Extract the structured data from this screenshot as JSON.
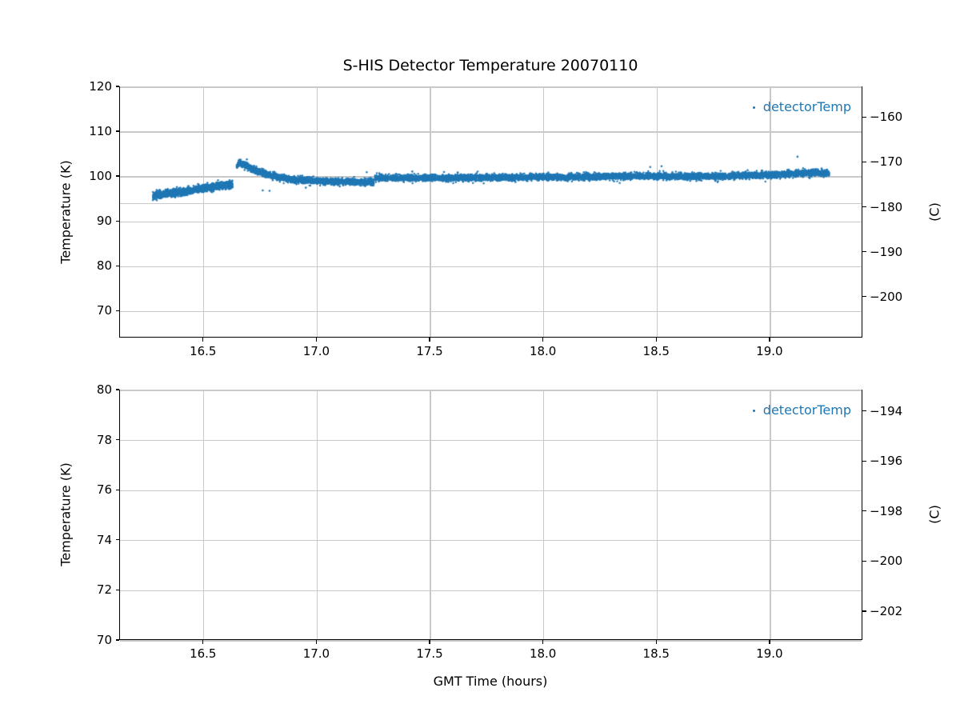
{
  "figure": {
    "title": "S-HIS Detector Temperature 20070110",
    "xlabel": "GMT Time (hours)",
    "accent_color": "#1f77b4",
    "grid_color": "#c9c9c9"
  },
  "chart_data": [
    {
      "type": "scatter",
      "title": "S-HIS Detector Temperature 20070110",
      "ylabel_left": "Temperature (K)",
      "ylabel_right": "(C)",
      "legend_label": "detectorTemp",
      "legend_position": "upper right",
      "marker_color": "#1f77b4",
      "grid": true,
      "xlim": [
        16.13,
        19.41
      ],
      "ylim_K": [
        64,
        120
      ],
      "c_to_k": 273.15,
      "xticks": [
        {
          "v": 16.5,
          "label": "16.5"
        },
        {
          "v": 17.0,
          "label": "17.0"
        },
        {
          "v": 17.5,
          "label": "17.5"
        },
        {
          "v": 18.0,
          "label": "18.0"
        },
        {
          "v": 18.5,
          "label": "18.5"
        },
        {
          "v": 19.0,
          "label": "19.0"
        }
      ],
      "yticks_left": [
        {
          "v": 70,
          "label": "70"
        },
        {
          "v": 80,
          "label": "80"
        },
        {
          "v": 90,
          "label": "90"
        },
        {
          "v": 100,
          "label": "100"
        },
        {
          "v": 110,
          "label": "110"
        },
        {
          "v": 120,
          "label": "120"
        }
      ],
      "yticks_right_C": [
        {
          "v": -160,
          "label": "−160"
        },
        {
          "v": -170,
          "label": "−170"
        },
        {
          "v": -180,
          "label": "−180"
        },
        {
          "v": -190,
          "label": "−190"
        },
        {
          "v": -200,
          "label": "−200"
        }
      ],
      "extra_hlines_K": [
        94.0
      ],
      "series": [
        {
          "name": "detectorTemp",
          "marker_radius": 1.2,
          "segments": [
            {
              "x_start": 16.275,
              "x_end": 16.627,
              "n": 1700,
              "sigma": 0.4,
              "anchors": [
                [
                  16.275,
                  95.85
                ],
                [
                  16.42,
                  96.8
                ],
                [
                  16.52,
                  97.6
                ],
                [
                  16.627,
                  98.35
                ]
              ]
            },
            {
              "x_start": 16.645,
              "x_end": 17.25,
              "n": 2600,
              "sigma": 0.33,
              "anchors": [
                [
                  16.645,
                  102.4
                ],
                [
                  16.66,
                  103.15
                ],
                [
                  16.7,
                  102.15
                ],
                [
                  16.75,
                  101.0
                ],
                [
                  16.8,
                  100.3
                ],
                [
                  16.88,
                  99.5
                ],
                [
                  16.98,
                  99.1
                ],
                [
                  17.1,
                  98.95
                ],
                [
                  17.25,
                  98.85
                ]
              ]
            },
            {
              "x_start": 17.255,
              "x_end": 19.26,
              "n": 7200,
              "sigma": 0.34,
              "anchors": [
                [
                  17.255,
                  99.8
                ],
                [
                  17.5,
                  99.75
                ],
                [
                  17.8,
                  99.85
                ],
                [
                  18.1,
                  99.95
                ],
                [
                  18.45,
                  100.2
                ],
                [
                  18.75,
                  100.1
                ],
                [
                  19.0,
                  100.45
                ],
                [
                  19.05,
                  100.6
                ],
                [
                  19.18,
                  100.9
                ],
                [
                  19.26,
                  100.75
                ]
              ]
            }
          ],
          "outliers": [
            [
              16.69,
              103.9
            ],
            [
              16.76,
              97.0
            ],
            [
              16.79,
              96.9
            ],
            [
              16.95,
              97.6
            ],
            [
              17.1,
              97.9
            ],
            [
              17.42,
              101.2
            ],
            [
              17.56,
              101.1
            ],
            [
              17.62,
              101.0
            ],
            [
              18.47,
              102.2
            ],
            [
              18.52,
              102.4
            ],
            [
              18.9,
              101.5
            ],
            [
              19.12,
              104.5
            ]
          ]
        }
      ]
    },
    {
      "type": "scatter",
      "xlabel": "GMT Time (hours)",
      "ylabel_left": "Temperature (K)",
      "ylabel_right": "(C)",
      "legend_label": "detectorTemp",
      "legend_position": "upper right",
      "marker_color": "#1f77b4",
      "grid": true,
      "xlim": [
        16.13,
        19.41
      ],
      "ylim_K": [
        70,
        80
      ],
      "c_to_k": 273.15,
      "xticks": [
        {
          "v": 16.5,
          "label": "16.5"
        },
        {
          "v": 17.0,
          "label": "17.0"
        },
        {
          "v": 17.5,
          "label": "17.5"
        },
        {
          "v": 18.0,
          "label": "18.0"
        },
        {
          "v": 18.5,
          "label": "18.5"
        },
        {
          "v": 19.0,
          "label": "19.0"
        }
      ],
      "yticks_left": [
        {
          "v": 70,
          "label": "70"
        },
        {
          "v": 72,
          "label": "72"
        },
        {
          "v": 74,
          "label": "74"
        },
        {
          "v": 76,
          "label": "76"
        },
        {
          "v": 78,
          "label": "78"
        },
        {
          "v": 80,
          "label": "80"
        }
      ],
      "yticks_right_C": [
        {
          "v": -194,
          "label": "−194"
        },
        {
          "v": -196,
          "label": "−196"
        },
        {
          "v": -198,
          "label": "−198"
        },
        {
          "v": -200,
          "label": "−200"
        },
        {
          "v": -202,
          "label": "−202"
        }
      ],
      "extra_hlines_K": [],
      "series": []
    }
  ]
}
